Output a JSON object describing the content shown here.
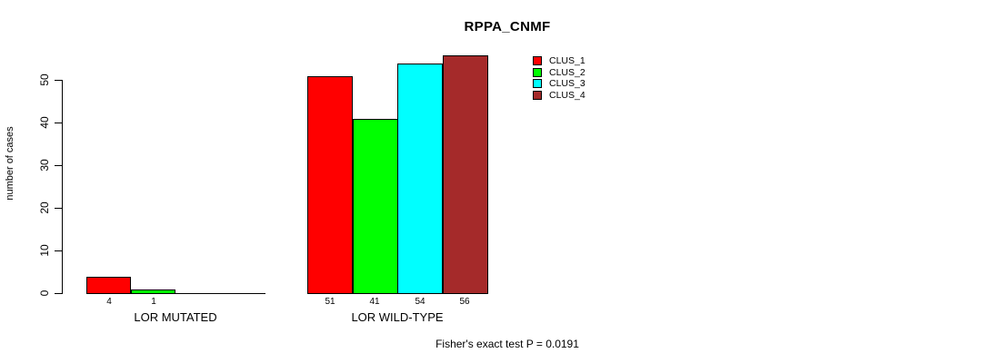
{
  "chart_data": {
    "type": "bar",
    "title": "RPPA_CNMF",
    "ylabel": "number of cases",
    "xlabel": "",
    "ylim": [
      0,
      56
    ],
    "yticks": [
      0,
      10,
      20,
      30,
      40,
      50
    ],
    "grid": false,
    "legend_position": "top-right",
    "series": [
      {
        "name": "CLUS_1",
        "color": "#FF0000"
      },
      {
        "name": "CLUS_2",
        "color": "#00FF00"
      },
      {
        "name": "CLUS_3",
        "color": "#00FFFF"
      },
      {
        "name": "CLUS_4",
        "color": "#A52A2A"
      }
    ],
    "categories": [
      "LOR MUTATED",
      "LOR WILD-TYPE"
    ],
    "groups": [
      {
        "label": "LOR MUTATED",
        "values": [
          4,
          1,
          0,
          0
        ],
        "bar_labels": [
          "4",
          "1",
          "",
          ""
        ]
      },
      {
        "label": "LOR WILD-TYPE",
        "values": [
          51,
          41,
          54,
          56
        ],
        "bar_labels": [
          "51",
          "41",
          "54",
          "56"
        ]
      }
    ],
    "footnote": "Fisher's exact test P = 0.0191"
  }
}
